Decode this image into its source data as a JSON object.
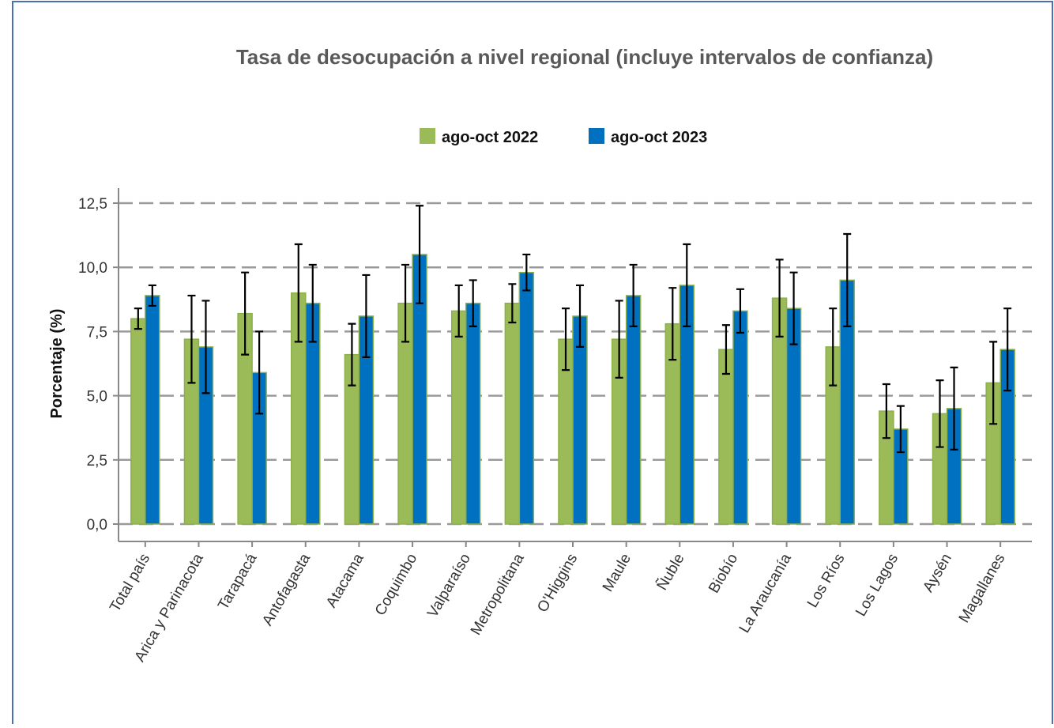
{
  "chart_data": {
    "type": "bar",
    "title": "Tasa de desocupación a nivel regional (incluye intervalos de confianza)",
    "y_label": "Porcentaje (%)",
    "categories": [
      "Total país",
      "Arica y Parinacota",
      "Tarapacá",
      "Antofagasta",
      "Atacama",
      "Coquimbo",
      "Valparaíso",
      "Metropolitana",
      "O'Higgins",
      "Maule",
      "Ñuble",
      "Biobío",
      "La Araucanía",
      "Los Ríos",
      "Los Lagos",
      "Aysén",
      "Magallanes"
    ],
    "series": [
      {
        "name": "ago-oct 2022",
        "color": "#9bbb59",
        "values": [
          8.0,
          7.2,
          8.2,
          9.0,
          6.6,
          8.6,
          8.3,
          8.6,
          7.2,
          7.2,
          7.8,
          6.8,
          8.8,
          6.9,
          4.4,
          4.3,
          5.5
        ],
        "errors": [
          0.4,
          1.7,
          1.6,
          1.9,
          1.2,
          1.5,
          1.0,
          0.75,
          1.2,
          1.5,
          1.4,
          0.95,
          1.5,
          1.5,
          1.05,
          1.3,
          1.6
        ]
      },
      {
        "name": "ago-oct 2023",
        "color": "#0070c0",
        "values": [
          8.9,
          6.9,
          5.9,
          8.6,
          8.1,
          10.5,
          8.6,
          9.8,
          8.1,
          8.9,
          9.3,
          8.3,
          8.4,
          9.5,
          3.7,
          4.5,
          6.8
        ],
        "errors": [
          0.4,
          1.8,
          1.6,
          1.5,
          1.6,
          1.9,
          0.9,
          0.7,
          1.2,
          1.2,
          1.6,
          0.85,
          1.4,
          1.8,
          0.9,
          1.6,
          1.6
        ]
      }
    ],
    "ylim": [
      0,
      12.5
    ],
    "yticks": [
      {
        "value": 0,
        "label": "0,0"
      },
      {
        "value": 2.5,
        "label": "2,5"
      },
      {
        "value": 5,
        "label": "5,0"
      },
      {
        "value": 7.5,
        "label": "7,5"
      },
      {
        "value": 10,
        "label": "10,0"
      },
      {
        "value": 12.5,
        "label": "12,5"
      }
    ],
    "grid": true,
    "legend": "top"
  }
}
